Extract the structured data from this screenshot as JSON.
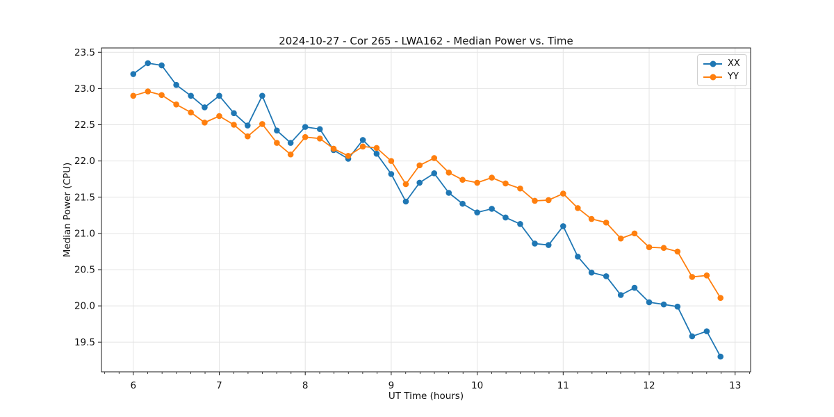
{
  "chart_data": {
    "type": "line",
    "title": "2024-10-27 - Cor 265 - LWA162 - Median Power vs. Time",
    "xlabel": "UT Time (hours)",
    "ylabel": "Median Power (CPU)",
    "grid": true,
    "legend_position": "upper right",
    "xlim": [
      5.63,
      13.18
    ],
    "ylim": [
      19.09,
      23.56
    ],
    "xticks": [
      6,
      7,
      8,
      9,
      10,
      11,
      12,
      13
    ],
    "yticks": [
      19.5,
      20.0,
      20.5,
      21.0,
      21.5,
      22.0,
      22.5,
      23.0,
      23.5
    ],
    "minor_xtick_step": 0.1667,
    "x": [
      6.0,
      6.17,
      6.33,
      6.5,
      6.67,
      6.83,
      7.0,
      7.17,
      7.33,
      7.5,
      7.67,
      7.83,
      8.0,
      8.17,
      8.33,
      8.5,
      8.67,
      8.83,
      9.0,
      9.17,
      9.33,
      9.5,
      9.67,
      9.83,
      10.0,
      10.17,
      10.33,
      10.5,
      10.67,
      10.83,
      11.0,
      11.17,
      11.33,
      11.5,
      11.67,
      11.83,
      12.0,
      12.17,
      12.33,
      12.5,
      12.67,
      12.83
    ],
    "series": [
      {
        "name": "XX",
        "color": "#1f77b4",
        "values": [
          23.2,
          23.35,
          23.32,
          23.05,
          22.9,
          22.74,
          22.9,
          22.66,
          22.49,
          22.9,
          22.42,
          22.25,
          22.47,
          22.44,
          22.15,
          22.03,
          22.29,
          22.1,
          21.82,
          21.44,
          21.7,
          21.83,
          21.56,
          21.41,
          21.29,
          21.34,
          21.22,
          21.13,
          20.86,
          20.84,
          21.1,
          20.68,
          20.46,
          20.41,
          20.15,
          20.25,
          20.05,
          20.02,
          19.99,
          19.58,
          19.65,
          19.3
        ]
      },
      {
        "name": "YY",
        "color": "#ff7f0e",
        "values": [
          22.9,
          22.96,
          22.91,
          22.78,
          22.67,
          22.53,
          22.62,
          22.5,
          22.34,
          22.51,
          22.25,
          22.09,
          22.33,
          22.31,
          22.17,
          22.07,
          22.2,
          22.18,
          22.0,
          21.68,
          21.94,
          22.04,
          21.84,
          21.74,
          21.7,
          21.77,
          21.69,
          21.62,
          21.45,
          21.46,
          21.55,
          21.35,
          21.2,
          21.15,
          20.93,
          21.0,
          20.81,
          20.8,
          20.75,
          20.4,
          20.42,
          20.11
        ]
      }
    ]
  }
}
